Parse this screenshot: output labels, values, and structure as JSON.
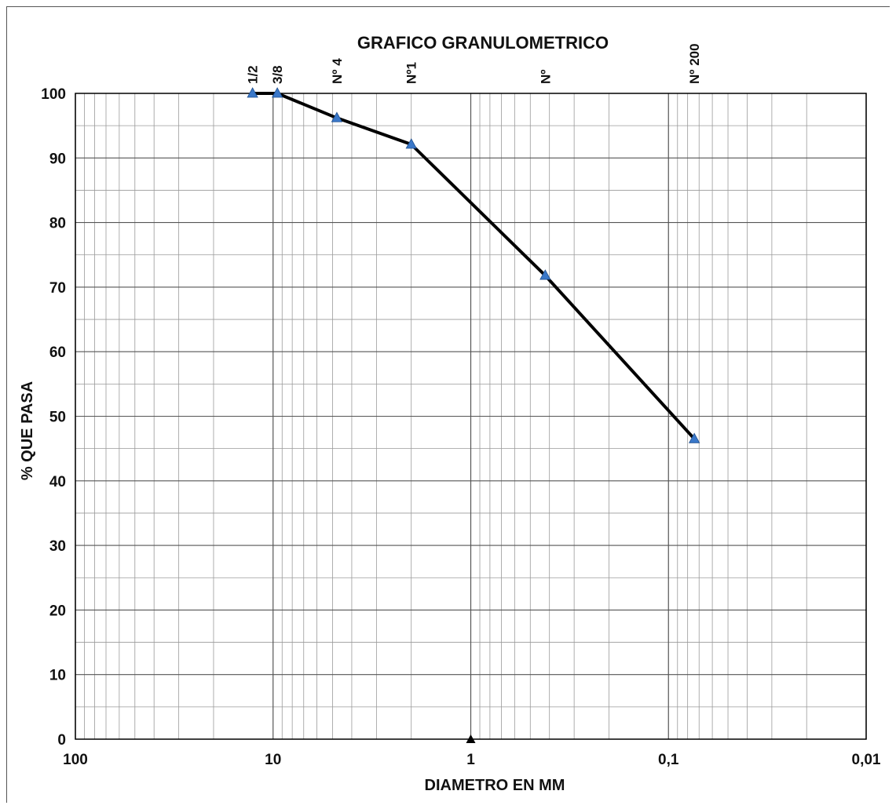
{
  "chart_data": {
    "type": "line",
    "title": "GRAFICO GRANULOMETRICO",
    "xlabel": "DIAMETRO EN  MM",
    "ylabel": "% QUE PASA",
    "xscale": "log",
    "xaxis_reversed": true,
    "xlim": [
      100,
      0.01
    ],
    "ylim": [
      0,
      100
    ],
    "grid": true,
    "x_ticks": [
      {
        "value": 100,
        "label": "100"
      },
      {
        "value": 10,
        "label": "10"
      },
      {
        "value": 1,
        "label": "1"
      },
      {
        "value": 0.1,
        "label": "0,1"
      },
      {
        "value": 0.01,
        "label": "0,01"
      }
    ],
    "y_ticks": [
      0,
      10,
      20,
      30,
      40,
      50,
      60,
      70,
      80,
      90,
      100
    ],
    "sieve_labels": [
      "1/2",
      "3/8",
      "Nº 4",
      "Nº1",
      "Nº",
      "Nº 200"
    ],
    "series": [
      {
        "x": [
          12.7,
          9.52,
          4.76,
          2.0,
          0.42,
          0.074
        ],
        "y": [
          100,
          100,
          96.2,
          92.1,
          71.8,
          46.5
        ]
      }
    ],
    "marker": "triangle",
    "line_color": "#000000",
    "marker_color": "#3a78c9",
    "extra_marker": {
      "x": 1,
      "y": 0,
      "color": "#000000"
    }
  }
}
